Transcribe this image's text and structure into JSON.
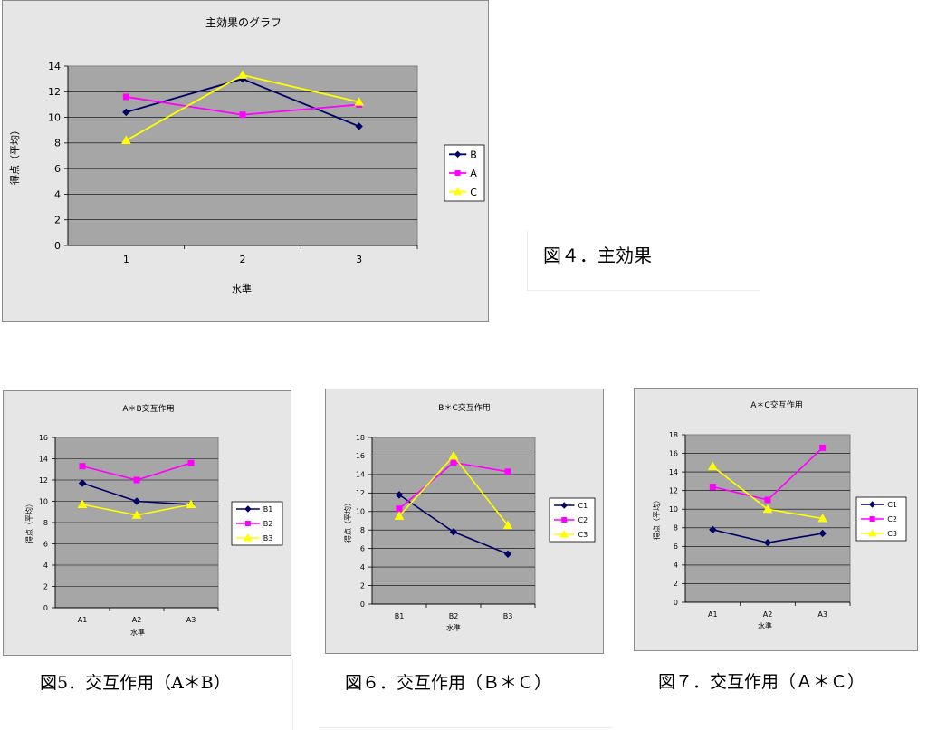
{
  "figures": [
    {
      "id": "main",
      "caption": "図４．主効果",
      "chart_data": {
        "type": "line",
        "title": "主効果のグラフ",
        "xlabel": "水準",
        "ylabel": "得点（平均）",
        "categories": [
          "1",
          "2",
          "3"
        ],
        "ylim": [
          0,
          14
        ],
        "ytick_step": 2,
        "grid": true,
        "legend_position": "right",
        "series": [
          {
            "name": "B",
            "values": [
              10.4,
              13.0,
              9.3
            ],
            "color": "#000066",
            "marker": "diamond"
          },
          {
            "name": "A",
            "values": [
              11.6,
              10.2,
              11.0
            ],
            "color": "#ff00ff",
            "marker": "square"
          },
          {
            "name": "C",
            "values": [
              8.2,
              13.3,
              11.2
            ],
            "color": "#ffff00",
            "marker": "triangle"
          }
        ]
      }
    },
    {
      "id": "ab",
      "caption": "図5．交互作用（A＊B）",
      "chart_data": {
        "type": "line",
        "title": "A＊B交互作用",
        "xlabel": "水準",
        "ylabel": "得点（平均）",
        "categories": [
          "A1",
          "A2",
          "A3"
        ],
        "ylim": [
          0,
          16
        ],
        "ytick_step": 2,
        "grid": true,
        "legend_position": "right",
        "series": [
          {
            "name": "B1",
            "values": [
              11.7,
              10.0,
              9.7
            ],
            "color": "#000066",
            "marker": "diamond"
          },
          {
            "name": "B2",
            "values": [
              13.3,
              12.0,
              13.6
            ],
            "color": "#ff00ff",
            "marker": "square"
          },
          {
            "name": "B3",
            "values": [
              9.7,
              8.7,
              9.7
            ],
            "color": "#ffff00",
            "marker": "triangle"
          }
        ]
      }
    },
    {
      "id": "bc",
      "caption": "図６．交互作用（Ｂ＊Ｃ）",
      "chart_data": {
        "type": "line",
        "title": "B＊C交互作用",
        "xlabel": "水準",
        "ylabel": "得点（平均）",
        "categories": [
          "B1",
          "B2",
          "B3"
        ],
        "ylim": [
          0,
          18
        ],
        "ytick_step": 2,
        "grid": true,
        "legend_position": "right",
        "series": [
          {
            "name": "C1",
            "values": [
              11.8,
              7.8,
              5.4
            ],
            "color": "#000066",
            "marker": "diamond"
          },
          {
            "name": "C2",
            "values": [
              10.3,
              15.3,
              14.3
            ],
            "color": "#ff00ff",
            "marker": "square"
          },
          {
            "name": "C3",
            "values": [
              9.5,
              16.0,
              8.5
            ],
            "color": "#ffff00",
            "marker": "triangle"
          }
        ]
      }
    },
    {
      "id": "ac",
      "caption": "図７．交互作用（Ａ＊Ｃ）",
      "chart_data": {
        "type": "line",
        "title": "A＊C交互作用",
        "xlabel": "水準",
        "ylabel": "得点（平均）",
        "categories": [
          "A1",
          "A2",
          "A3"
        ],
        "ylim": [
          0,
          18
        ],
        "ytick_step": 2,
        "grid": true,
        "legend_position": "right",
        "series": [
          {
            "name": "C1",
            "values": [
              7.8,
              6.4,
              7.4
            ],
            "color": "#000066",
            "marker": "diamond"
          },
          {
            "name": "C2",
            "values": [
              12.4,
              11.0,
              16.6
            ],
            "color": "#ff00ff",
            "marker": "square"
          },
          {
            "name": "C3",
            "values": [
              14.6,
              10.0,
              9.0
            ],
            "color": "#ffff00",
            "marker": "triangle"
          }
        ]
      }
    }
  ]
}
